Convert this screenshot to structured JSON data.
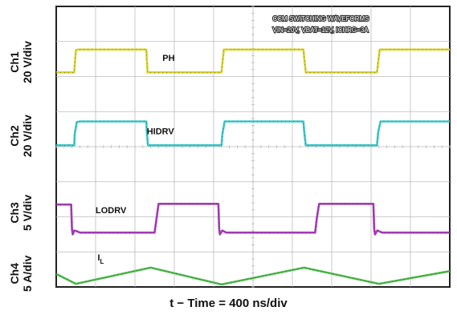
{
  "chart_data": {
    "type": "line",
    "title": "CCM SWITCHING WAVEFORMS",
    "subtitle": "VIN=20V, VBAT=12V, ICHRG=3A",
    "xlabel": "t − Time = 400 ns/div",
    "x_divisions": 10,
    "y_divisions": 8,
    "xlim": [
      0,
      10
    ],
    "grid": true,
    "channels": [
      {
        "channel": "Ch1",
        "scale": "20 V/div",
        "label": "PH",
        "color": "#d8d22a",
        "points": [
          [
            0,
            0.47
          ],
          [
            0.46,
            0.47
          ],
          [
            0.47,
            0.68
          ],
          [
            0.5,
            1.1
          ],
          [
            0.56,
            1.12
          ],
          [
            2.29,
            1.12
          ],
          [
            2.3,
            0.9
          ],
          [
            2.32,
            0.47
          ],
          [
            4.2,
            0.47
          ],
          [
            4.22,
            0.7
          ],
          [
            4.26,
            1.12
          ],
          [
            6.28,
            1.12
          ],
          [
            6.3,
            0.9
          ],
          [
            6.34,
            0.47
          ],
          [
            8.15,
            0.47
          ],
          [
            8.18,
            0.75
          ],
          [
            8.22,
            1.12
          ],
          [
            10,
            1.12
          ]
        ]
      },
      {
        "channel": "Ch2",
        "scale": "20 V/div",
        "label": "HIDRV",
        "color": "#3cc7c9",
        "points": [
          [
            0,
            0.39
          ],
          [
            0.46,
            0.39
          ],
          [
            0.47,
            0.7
          ],
          [
            0.52,
            1.05
          ],
          [
            0.6,
            1.07
          ],
          [
            2.29,
            1.07
          ],
          [
            2.3,
            0.8
          ],
          [
            2.33,
            0.39
          ],
          [
            4.2,
            0.39
          ],
          [
            4.22,
            0.7
          ],
          [
            4.28,
            1.07
          ],
          [
            6.28,
            1.07
          ],
          [
            6.3,
            0.8
          ],
          [
            6.34,
            0.39
          ],
          [
            8.15,
            0.39
          ],
          [
            8.18,
            0.75
          ],
          [
            8.24,
            1.07
          ],
          [
            10,
            1.07
          ]
        ]
      },
      {
        "channel": "Ch3",
        "scale": "5 V/div",
        "label": "LODRV",
        "color": "#a53bb7",
        "points": [
          [
            0,
            0.8
          ],
          [
            0.38,
            0.8
          ],
          [
            0.4,
            0.1
          ],
          [
            0.42,
            -0.05
          ],
          [
            0.46,
            0.06
          ],
          [
            0.52,
            0.04
          ],
          [
            0.6,
            0.0
          ],
          [
            2.5,
            0.0
          ],
          [
            2.55,
            0.4
          ],
          [
            2.6,
            0.82
          ],
          [
            4.12,
            0.82
          ],
          [
            4.14,
            0.1
          ],
          [
            4.16,
            -0.05
          ],
          [
            4.22,
            0.06
          ],
          [
            4.32,
            0.0
          ],
          [
            6.58,
            0.0
          ],
          [
            6.62,
            0.4
          ],
          [
            6.68,
            0.82
          ],
          [
            8.06,
            0.82
          ],
          [
            8.08,
            0.1
          ],
          [
            8.1,
            -0.05
          ],
          [
            8.16,
            0.06
          ],
          [
            8.28,
            0.0
          ],
          [
            10,
            0.0
          ]
        ]
      },
      {
        "channel": "Ch4",
        "scale": "5 A/div",
        "label": "I",
        "label_sub": "L",
        "color": "#4db84a",
        "points": [
          [
            0,
            0.02
          ],
          [
            0.5,
            -0.26
          ],
          [
            2.4,
            0.2
          ],
          [
            4.2,
            -0.28
          ],
          [
            6.3,
            0.2
          ],
          [
            8.2,
            -0.26
          ],
          [
            10,
            0.1
          ]
        ]
      }
    ]
  }
}
